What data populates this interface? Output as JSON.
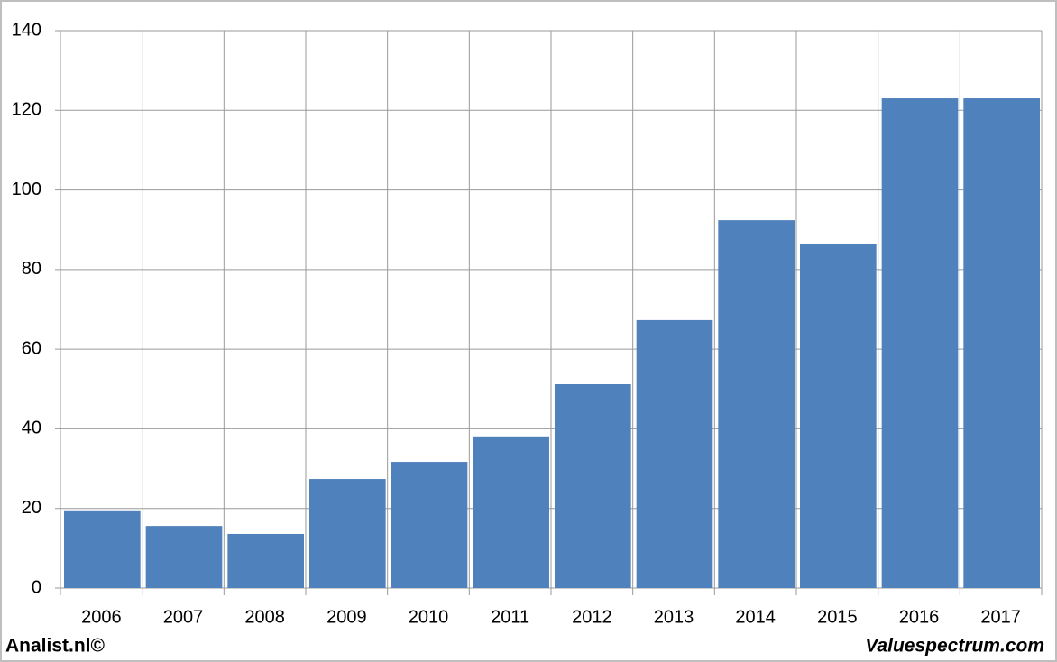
{
  "chart_data": {
    "type": "bar",
    "categories": [
      "2006",
      "2007",
      "2008",
      "2009",
      "2010",
      "2011",
      "2012",
      "2013",
      "2014",
      "2015",
      "2016",
      "2017"
    ],
    "values": [
      19.3,
      15.6,
      13.6,
      27.4,
      31.7,
      38.1,
      51.2,
      67.3,
      92.4,
      86.5,
      123.0,
      123.0
    ],
    "color": "#4f81bd",
    "ylim": [
      0,
      140
    ],
    "yticks": [
      0,
      20,
      40,
      60,
      80,
      100,
      120,
      140
    ],
    "grid": true,
    "footer_left": "Analist.nl©",
    "footer_right": "Valuespectrum.com"
  }
}
